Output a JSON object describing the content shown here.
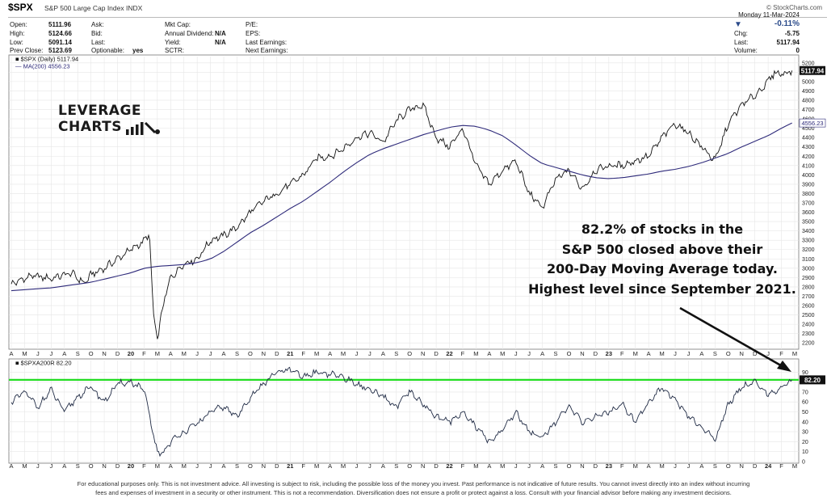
{
  "header": {
    "symbol": "$SPX",
    "description": "S&P 500 Large Cap Index INDX",
    "copyright": "© StockCharts.com",
    "date": "Monday 11-Mar-2024",
    "fields": {
      "open_label": "Open:",
      "open": "5111.96",
      "high_label": "High:",
      "high": "5124.66",
      "low_label": "Low:",
      "low": "5091.14",
      "prevclose_label": "Prev Close:",
      "prevclose": "5123.69",
      "ask_label": "Ask:",
      "bid_label": "Bid:",
      "last_label": "Last:",
      "optionable_label": "Optionable:",
      "optionable": "yes",
      "mktcap_label": "Mkt Cap:",
      "div_label": "Annual Dividend:",
      "div": "N/A",
      "yield_label": "Yield:",
      "yield": "N/A",
      "sctr_label": "SCTR:",
      "pe_label": "P/E:",
      "eps_label": "EPS:",
      "lastearn_label": "Last Earnings:",
      "nextearn_label": "Next Earnings:",
      "chgpct": "-0.11%",
      "chg_label": "Chg:",
      "chg": "-5.75",
      "last2_label": "Last:",
      "last2": "5117.94",
      "volume_label": "Volume:",
      "volume": "0"
    }
  },
  "logo": {
    "line1": "LEVERAGE",
    "line2": "CHARTS"
  },
  "annotation": {
    "lines": [
      "82.2% of stocks in the",
      "S&P 500 closed above their",
      "200-Day Moving Average today.",
      "Highest level since September 2021."
    ]
  },
  "disclaimer": {
    "line1": "For educational purposes only. This is not investment advice. All investing is subject to risk, including the possible loss of the money you invest. Past performance is not indicative of future results. You cannot invest directly into an index without incurring",
    "line2": "fees and expenses of investment in a security or other instrument. This is not a recommendation. Diversification does not ensure a profit or protect against a loss. Consult with your financial advisor before making any investment decisions."
  },
  "colors": {
    "price": "#111111",
    "ma": "#2e2a7a",
    "breadth": "#1f2a44",
    "threshold": "#22dd22",
    "tag_bg": "#111111"
  },
  "chart_data": [
    {
      "type": "line",
      "title": "$SPX (Daily) 5117.94",
      "legend": [
        "$SPX (Daily) 5117.94",
        "MA(200) 4556.23"
      ],
      "x_labels": [
        "A",
        "M",
        "J",
        "J",
        "A",
        "S",
        "O",
        "N",
        "D",
        "20",
        "F",
        "M",
        "A",
        "M",
        "J",
        "J",
        "A",
        "S",
        "O",
        "N",
        "D",
        "21",
        "F",
        "M",
        "A",
        "M",
        "J",
        "J",
        "A",
        "S",
        "O",
        "N",
        "D",
        "22",
        "F",
        "M",
        "A",
        "M",
        "J",
        "J",
        "A",
        "S",
        "O",
        "N",
        "D",
        "23",
        "F",
        "M",
        "A",
        "M",
        "J",
        "J",
        "A",
        "S",
        "O",
        "N",
        "D",
        "J",
        "F",
        "M"
      ],
      "ylim": [
        2150,
        5250
      ],
      "yticks": [
        2200,
        2300,
        2400,
        2500,
        2600,
        2700,
        2800,
        2900,
        3000,
        3100,
        3200,
        3300,
        3400,
        3500,
        3600,
        3700,
        3800,
        3900,
        4000,
        4100,
        4200,
        4300,
        4400,
        4500,
        4600,
        4700,
        4800,
        4900,
        5000,
        5100,
        5200
      ],
      "last_value_label": "5117.94",
      "ma_value_label": "4556.23",
      "series": [
        {
          "name": "$SPX (Daily)",
          "x": [
            0,
            1.5,
            3,
            4.5,
            5.5,
            6,
            7,
            8,
            9,
            10,
            10.4,
            10.7,
            11,
            11.5,
            12,
            13,
            14,
            15,
            16,
            17,
            18,
            19,
            20,
            21,
            22,
            23,
            24,
            25,
            26,
            27,
            28,
            29,
            30,
            31,
            32,
            33,
            34,
            35,
            36,
            37,
            38,
            39,
            40,
            41,
            42,
            43,
            44,
            45,
            46,
            47,
            48,
            49,
            50,
            51,
            52,
            53,
            54,
            55,
            56,
            57,
            57.5,
            58,
            58.8
          ],
          "values": [
            2830,
            2920,
            2890,
            2950,
            2840,
            2930,
            3000,
            3100,
            3200,
            3290,
            3380,
            2500,
            2240,
            2650,
            2900,
            3050,
            3100,
            3300,
            3350,
            3440,
            3600,
            3720,
            3800,
            3900,
            4000,
            4180,
            4200,
            4280,
            4400,
            4450,
            4350,
            4580,
            4700,
            4750,
            4400,
            4300,
            4500,
            4100,
            3900,
            4050,
            4150,
            3800,
            3650,
            3950,
            4050,
            3850,
            4050,
            4100,
            4100,
            4150,
            4200,
            4400,
            4550,
            4450,
            4300,
            4150,
            4550,
            4750,
            4850,
            5000,
            5100,
            5080,
            5117.94
          ]
        },
        {
          "name": "MA(200)",
          "x": [
            0,
            3,
            6,
            9,
            10,
            11,
            12,
            13,
            14,
            15,
            16,
            17,
            18,
            19,
            20,
            21,
            22,
            23,
            24,
            25,
            26,
            27,
            28,
            29,
            30,
            31,
            32,
            33,
            34,
            35,
            36,
            37,
            38,
            39,
            40,
            41,
            42,
            43,
            44,
            45,
            46,
            47,
            48,
            49,
            50,
            51,
            52,
            53,
            54,
            55,
            56,
            57,
            58,
            58.8
          ],
          "values": [
            2760,
            2790,
            2850,
            2950,
            3000,
            3020,
            3030,
            3040,
            3060,
            3100,
            3180,
            3280,
            3380,
            3460,
            3550,
            3640,
            3720,
            3820,
            3920,
            4030,
            4130,
            4220,
            4280,
            4330,
            4380,
            4430,
            4470,
            4510,
            4530,
            4520,
            4480,
            4420,
            4320,
            4210,
            4120,
            4080,
            4040,
            4000,
            3970,
            3960,
            3970,
            3990,
            4010,
            4040,
            4060,
            4090,
            4130,
            4180,
            4230,
            4300,
            4360,
            4420,
            4500,
            4556.23
          ]
        }
      ]
    },
    {
      "type": "line",
      "title": "$SPXA200R 82.20",
      "legend": [
        "$SPXA200R 82.20"
      ],
      "x_labels": [
        "A",
        "M",
        "J",
        "J",
        "A",
        "S",
        "O",
        "N",
        "D",
        "20",
        "F",
        "M",
        "A",
        "M",
        "J",
        "J",
        "A",
        "S",
        "O",
        "N",
        "D",
        "21",
        "F",
        "M",
        "A",
        "M",
        "J",
        "J",
        "A",
        "S",
        "O",
        "N",
        "D",
        "22",
        "F",
        "M",
        "A",
        "M",
        "J",
        "J",
        "A",
        "S",
        "O",
        "N",
        "D",
        "23",
        "F",
        "M",
        "A",
        "M",
        "J",
        "J",
        "A",
        "S",
        "O",
        "N",
        "D",
        "24",
        "F",
        "M"
      ],
      "ylim": [
        0,
        100
      ],
      "yticks": [
        0,
        10,
        20,
        30,
        40,
        50,
        60,
        70,
        80,
        90
      ],
      "threshold": 82.2,
      "last_value_label": "82.20",
      "series": [
        {
          "name": "$SPXA200R",
          "x": [
            0,
            1,
            2,
            3,
            4,
            5,
            6,
            7,
            8,
            9,
            10,
            10.5,
            11,
            11.5,
            12,
            13,
            14,
            15,
            16,
            17,
            18,
            19,
            20,
            21,
            22,
            23,
            24,
            25,
            26,
            27,
            28,
            29,
            30,
            31,
            32,
            33,
            34,
            35,
            36,
            37,
            38,
            39,
            40,
            41,
            42,
            43,
            44,
            45,
            46,
            47,
            48,
            49,
            50,
            51,
            52,
            53,
            54,
            55,
            56,
            57,
            58,
            58.8
          ],
          "values": [
            60,
            70,
            55,
            72,
            50,
            65,
            75,
            60,
            78,
            80,
            72,
            40,
            8,
            10,
            20,
            30,
            38,
            50,
            55,
            45,
            65,
            78,
            90,
            92,
            85,
            90,
            88,
            85,
            78,
            72,
            65,
            55,
            70,
            58,
            45,
            40,
            50,
            35,
            20,
            32,
            50,
            30,
            25,
            40,
            55,
            40,
            45,
            50,
            58,
            40,
            60,
            75,
            62,
            45,
            35,
            22,
            58,
            75,
            80,
            68,
            74,
            82.2
          ]
        }
      ]
    }
  ]
}
